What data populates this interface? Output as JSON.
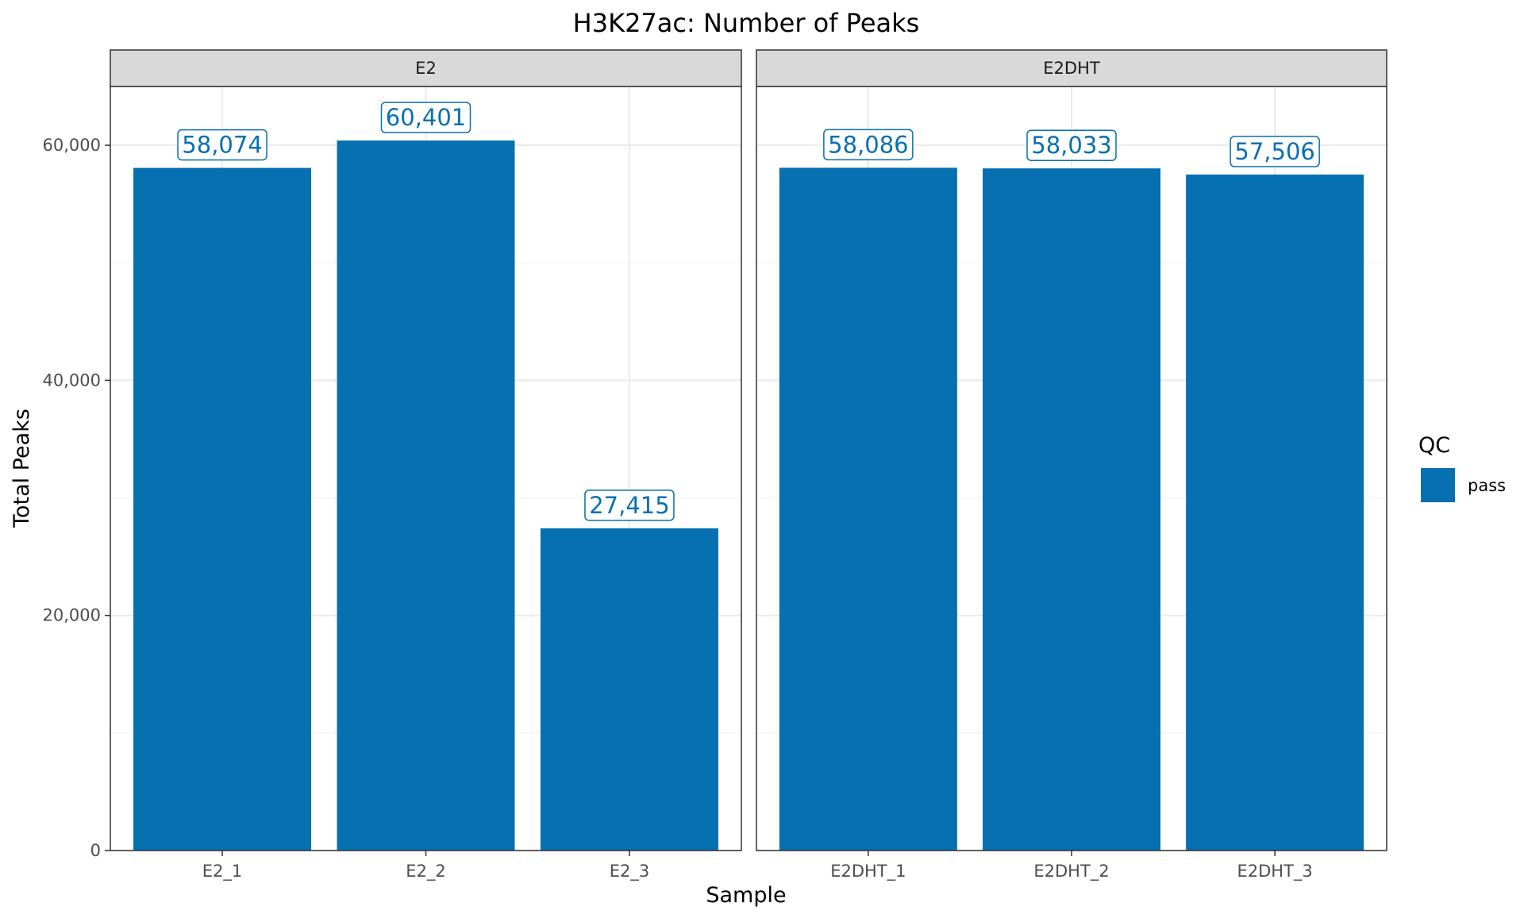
{
  "chart_data": {
    "type": "bar",
    "title": "H3K27ac: Number of Peaks",
    "xlabel": "Sample",
    "ylabel": "Total Peaks",
    "ylim": [
      0,
      65000
    ],
    "yticks": [
      0,
      20000,
      40000,
      60000
    ],
    "ytick_labels": [
      "0",
      "20,000",
      "40,000",
      "60,000"
    ],
    "grid": true,
    "colors": {
      "bar": "#0770B1",
      "label_text": "#0770B1"
    },
    "legend": {
      "title": "QC",
      "placement": "right",
      "entries": [
        {
          "label": "pass",
          "color": "#0770B1"
        }
      ]
    },
    "facets": [
      {
        "name": "E2",
        "categories": [
          "E2_1",
          "E2_2",
          "E2_3"
        ],
        "values": [
          58074,
          60401,
          27415
        ],
        "labels": [
          "58,074",
          "60,401",
          "27,415"
        ]
      },
      {
        "name": "E2DHT",
        "categories": [
          "E2DHT_1",
          "E2DHT_2",
          "E2DHT_3"
        ],
        "values": [
          58086,
          58033,
          57506
        ],
        "labels": [
          "58,086",
          "58,033",
          "57,506"
        ]
      }
    ]
  }
}
